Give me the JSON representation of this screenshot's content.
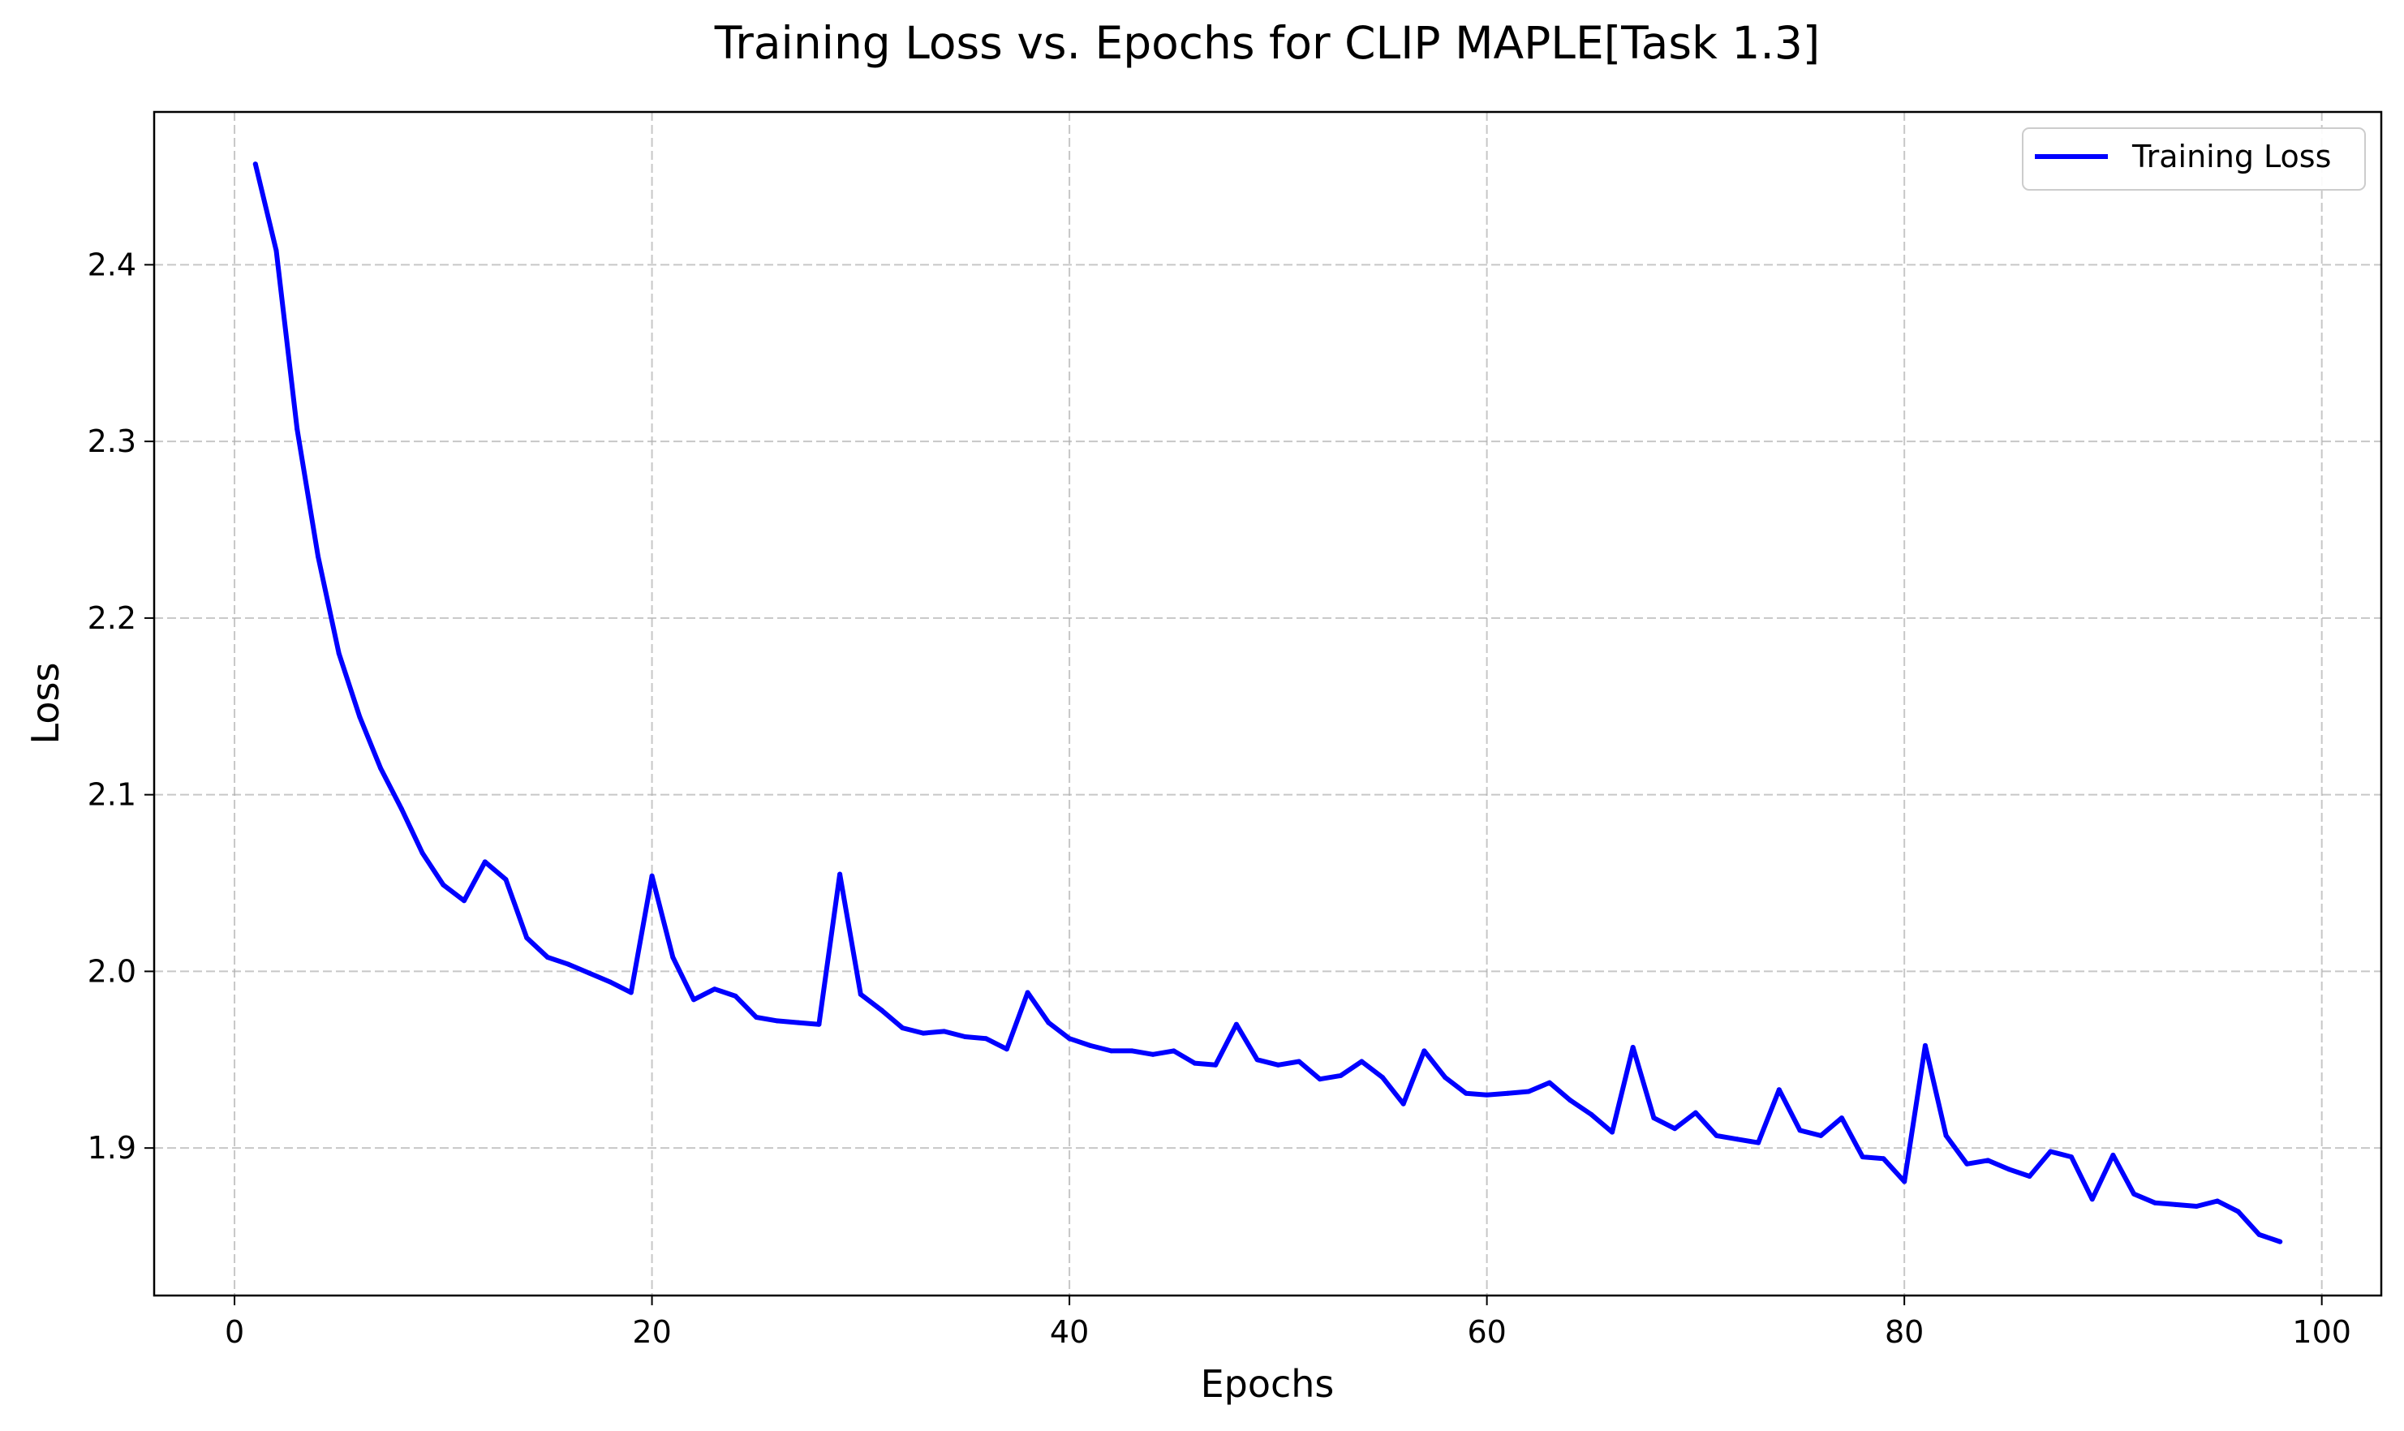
{
  "chart_data": {
    "type": "line",
    "title": "Training Loss vs. Epochs for CLIP MAPLE[Task 1.3]",
    "xlabel": "Epochs",
    "ylabel": "Loss",
    "xlim": [
      -3.85,
      102.85
    ],
    "ylim": [
      1.8165,
      2.4865
    ],
    "xticks": [
      0,
      20,
      40,
      60,
      80,
      100
    ],
    "yticks": [
      1.9,
      2.0,
      2.1,
      2.2,
      2.3,
      2.4
    ],
    "xtick_labels": [
      "0",
      "20",
      "40",
      "60",
      "80",
      "100"
    ],
    "ytick_labels": [
      "1.9",
      "2.0",
      "2.1",
      "2.2",
      "2.3",
      "2.4"
    ],
    "grid": true,
    "legend_position": "top-right",
    "series": [
      {
        "name": "Training Loss",
        "color": "#0000ff",
        "x": [
          1,
          2,
          3,
          4,
          5,
          6,
          7,
          8,
          9,
          10,
          11,
          12,
          13,
          14,
          15,
          16,
          17,
          18,
          19,
          20,
          21,
          22,
          23,
          24,
          25,
          26,
          27,
          28,
          29,
          30,
          31,
          32,
          33,
          34,
          35,
          36,
          37,
          38,
          39,
          40,
          41,
          42,
          43,
          44,
          45,
          46,
          47,
          48,
          49,
          50,
          51,
          52,
          53,
          54,
          55,
          56,
          57,
          58,
          59,
          60,
          61,
          62,
          63,
          64,
          65,
          66,
          67,
          68,
          69,
          70,
          71,
          72,
          73,
          74,
          75,
          76,
          77,
          78,
          79,
          80,
          81,
          82,
          83,
          84,
          85,
          86,
          87,
          88,
          89,
          90,
          91,
          92,
          93,
          94,
          95,
          96,
          97,
          98
        ],
        "y": [
          2.457,
          2.408,
          2.307,
          2.235,
          2.18,
          2.144,
          2.115,
          2.092,
          2.067,
          2.049,
          2.04,
          2.062,
          2.052,
          2.019,
          2.008,
          2.004,
          1.999,
          1.994,
          1.988,
          2.054,
          2.008,
          1.984,
          1.99,
          1.986,
          1.974,
          1.972,
          1.971,
          1.97,
          2.055,
          1.987,
          1.978,
          1.968,
          1.965,
          1.966,
          1.963,
          1.962,
          1.956,
          1.988,
          1.971,
          1.962,
          1.958,
          1.955,
          1.955,
          1.953,
          1.955,
          1.948,
          1.947,
          1.97,
          1.95,
          1.947,
          1.949,
          1.939,
          1.941,
          1.949,
          1.94,
          1.925,
          1.955,
          1.94,
          1.931,
          1.93,
          1.931,
          1.932,
          1.937,
          1.927,
          1.919,
          1.909,
          1.957,
          1.917,
          1.911,
          1.92,
          1.907,
          1.905,
          1.903,
          1.933,
          1.91,
          1.907,
          1.917,
          1.895,
          1.894,
          1.881,
          1.958,
          1.907,
          1.891,
          1.893,
          1.888,
          1.884,
          1.898,
          1.895,
          1.871,
          1.896,
          1.874,
          1.869,
          1.868,
          1.867,
          1.87,
          1.864,
          1.851,
          1.847
        ]
      }
    ]
  }
}
